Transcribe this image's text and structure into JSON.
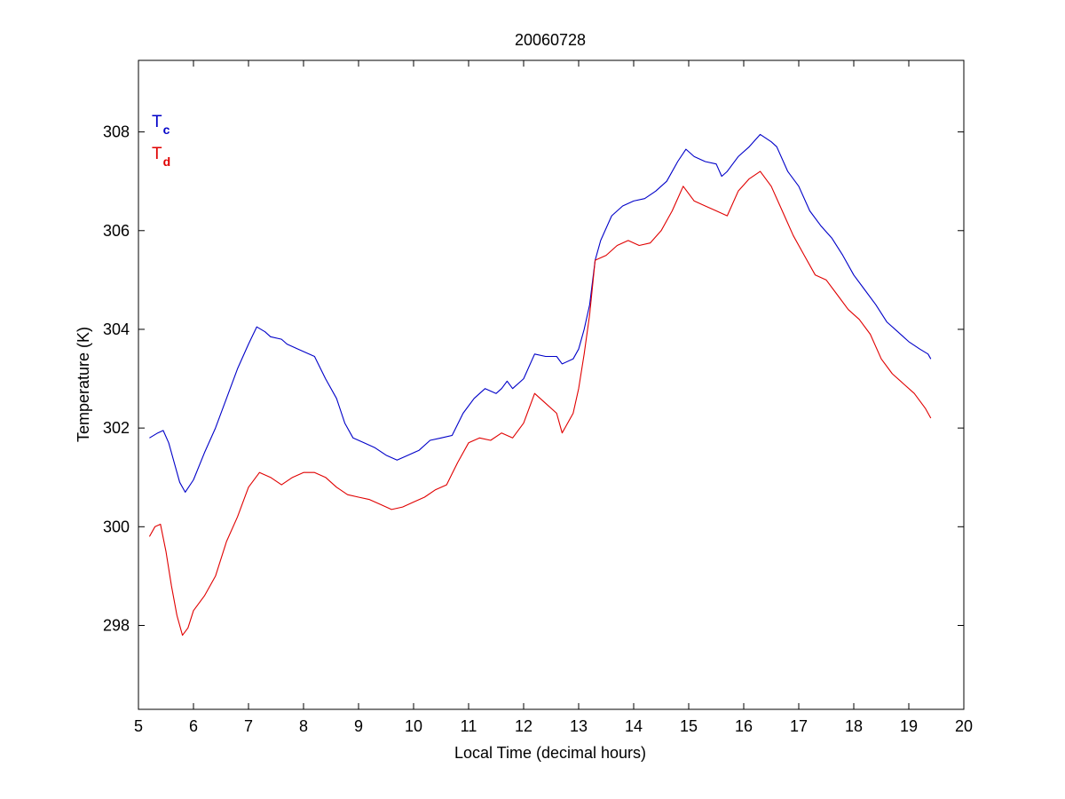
{
  "chart_data": {
    "type": "line",
    "title": "20060728",
    "xlabel": "Local Time (decimal hours)",
    "ylabel": "Temperature (K)",
    "xlim": [
      5,
      20
    ],
    "ylim": [
      296.3,
      309.45
    ],
    "xticks": [
      5,
      6,
      7,
      8,
      9,
      10,
      11,
      12,
      13,
      14,
      15,
      16,
      17,
      18,
      19,
      20
    ],
    "yticks": [
      298,
      300,
      302,
      304,
      306,
      308
    ],
    "grid": false,
    "legend_position": "top-left",
    "series": [
      {
        "name": "T",
        "subscript": "c",
        "color": "#0000c8",
        "points": [
          [
            5.2,
            301.8
          ],
          [
            5.35,
            301.9
          ],
          [
            5.45,
            301.95
          ],
          [
            5.55,
            301.7
          ],
          [
            5.65,
            301.3
          ],
          [
            5.75,
            300.9
          ],
          [
            5.85,
            300.7
          ],
          [
            6.0,
            300.95
          ],
          [
            6.2,
            301.5
          ],
          [
            6.4,
            302.0
          ],
          [
            6.6,
            302.6
          ],
          [
            6.8,
            303.2
          ],
          [
            7.0,
            303.7
          ],
          [
            7.15,
            304.05
          ],
          [
            7.3,
            303.95
          ],
          [
            7.4,
            303.85
          ],
          [
            7.6,
            303.8
          ],
          [
            7.7,
            303.7
          ],
          [
            7.9,
            303.6
          ],
          [
            8.1,
            303.5
          ],
          [
            8.2,
            303.45
          ],
          [
            8.4,
            303.0
          ],
          [
            8.6,
            302.6
          ],
          [
            8.75,
            302.1
          ],
          [
            8.9,
            301.8
          ],
          [
            9.1,
            301.7
          ],
          [
            9.3,
            301.6
          ],
          [
            9.5,
            301.45
          ],
          [
            9.7,
            301.35
          ],
          [
            9.9,
            301.45
          ],
          [
            10.1,
            301.55
          ],
          [
            10.3,
            301.75
          ],
          [
            10.5,
            301.8
          ],
          [
            10.7,
            301.85
          ],
          [
            10.9,
            302.3
          ],
          [
            11.1,
            302.6
          ],
          [
            11.3,
            302.8
          ],
          [
            11.5,
            302.7
          ],
          [
            11.6,
            302.8
          ],
          [
            11.7,
            302.95
          ],
          [
            11.8,
            302.8
          ],
          [
            12.0,
            303.0
          ],
          [
            12.2,
            303.5
          ],
          [
            12.4,
            303.45
          ],
          [
            12.6,
            303.45
          ],
          [
            12.7,
            303.3
          ],
          [
            12.9,
            303.4
          ],
          [
            13.0,
            303.6
          ],
          [
            13.1,
            304.0
          ],
          [
            13.2,
            304.5
          ],
          [
            13.3,
            305.4
          ],
          [
            13.4,
            305.8
          ],
          [
            13.6,
            306.3
          ],
          [
            13.8,
            306.5
          ],
          [
            14.0,
            306.6
          ],
          [
            14.2,
            306.65
          ],
          [
            14.4,
            306.8
          ],
          [
            14.6,
            307.0
          ],
          [
            14.8,
            307.4
          ],
          [
            14.95,
            307.65
          ],
          [
            15.1,
            307.5
          ],
          [
            15.3,
            307.4
          ],
          [
            15.5,
            307.35
          ],
          [
            15.6,
            307.1
          ],
          [
            15.7,
            307.2
          ],
          [
            15.9,
            307.5
          ],
          [
            16.1,
            307.7
          ],
          [
            16.3,
            307.95
          ],
          [
            16.5,
            307.8
          ],
          [
            16.6,
            307.7
          ],
          [
            16.8,
            307.2
          ],
          [
            17.0,
            306.9
          ],
          [
            17.2,
            306.4
          ],
          [
            17.4,
            306.1
          ],
          [
            17.6,
            305.85
          ],
          [
            17.8,
            305.5
          ],
          [
            18.0,
            305.1
          ],
          [
            18.2,
            304.8
          ],
          [
            18.4,
            304.5
          ],
          [
            18.6,
            304.15
          ],
          [
            18.8,
            303.95
          ],
          [
            19.0,
            303.75
          ],
          [
            19.2,
            303.6
          ],
          [
            19.35,
            303.5
          ],
          [
            19.4,
            303.4
          ]
        ]
      },
      {
        "name": "T",
        "subscript": "d",
        "color": "#e00000",
        "points": [
          [
            5.2,
            299.8
          ],
          [
            5.3,
            300.0
          ],
          [
            5.4,
            300.05
          ],
          [
            5.5,
            299.5
          ],
          [
            5.6,
            298.8
          ],
          [
            5.7,
            298.2
          ],
          [
            5.8,
            297.8
          ],
          [
            5.9,
            297.95
          ],
          [
            6.0,
            298.3
          ],
          [
            6.2,
            298.6
          ],
          [
            6.4,
            299.0
          ],
          [
            6.6,
            299.7
          ],
          [
            6.8,
            300.2
          ],
          [
            7.0,
            300.8
          ],
          [
            7.2,
            301.1
          ],
          [
            7.4,
            301.0
          ],
          [
            7.6,
            300.85
          ],
          [
            7.8,
            301.0
          ],
          [
            8.0,
            301.1
          ],
          [
            8.2,
            301.1
          ],
          [
            8.4,
            301.0
          ],
          [
            8.6,
            300.8
          ],
          [
            8.8,
            300.65
          ],
          [
            9.0,
            300.6
          ],
          [
            9.2,
            300.55
          ],
          [
            9.4,
            300.45
          ],
          [
            9.6,
            300.35
          ],
          [
            9.8,
            300.4
          ],
          [
            10.0,
            300.5
          ],
          [
            10.2,
            300.6
          ],
          [
            10.4,
            300.75
          ],
          [
            10.6,
            300.85
          ],
          [
            10.8,
            301.3
          ],
          [
            11.0,
            301.7
          ],
          [
            11.2,
            301.8
          ],
          [
            11.4,
            301.75
          ],
          [
            11.6,
            301.9
          ],
          [
            11.8,
            301.8
          ],
          [
            12.0,
            302.1
          ],
          [
            12.2,
            302.7
          ],
          [
            12.4,
            302.5
          ],
          [
            12.6,
            302.3
          ],
          [
            12.7,
            301.9
          ],
          [
            12.9,
            302.3
          ],
          [
            13.0,
            302.8
          ],
          [
            13.1,
            303.5
          ],
          [
            13.2,
            304.3
          ],
          [
            13.3,
            305.4
          ],
          [
            13.5,
            305.5
          ],
          [
            13.7,
            305.7
          ],
          [
            13.9,
            305.8
          ],
          [
            14.1,
            305.7
          ],
          [
            14.3,
            305.75
          ],
          [
            14.5,
            306.0
          ],
          [
            14.7,
            306.4
          ],
          [
            14.9,
            306.9
          ],
          [
            15.1,
            306.6
          ],
          [
            15.3,
            306.5
          ],
          [
            15.5,
            306.4
          ],
          [
            15.7,
            306.3
          ],
          [
            15.9,
            306.8
          ],
          [
            16.1,
            307.05
          ],
          [
            16.3,
            307.2
          ],
          [
            16.5,
            306.9
          ],
          [
            16.7,
            306.4
          ],
          [
            16.9,
            305.9
          ],
          [
            17.1,
            305.5
          ],
          [
            17.3,
            305.1
          ],
          [
            17.5,
            305.0
          ],
          [
            17.7,
            304.7
          ],
          [
            17.9,
            304.4
          ],
          [
            18.1,
            304.2
          ],
          [
            18.3,
            303.9
          ],
          [
            18.5,
            303.4
          ],
          [
            18.7,
            303.1
          ],
          [
            18.9,
            302.9
          ],
          [
            19.1,
            302.7
          ],
          [
            19.3,
            302.4
          ],
          [
            19.4,
            302.2
          ]
        ]
      }
    ]
  }
}
